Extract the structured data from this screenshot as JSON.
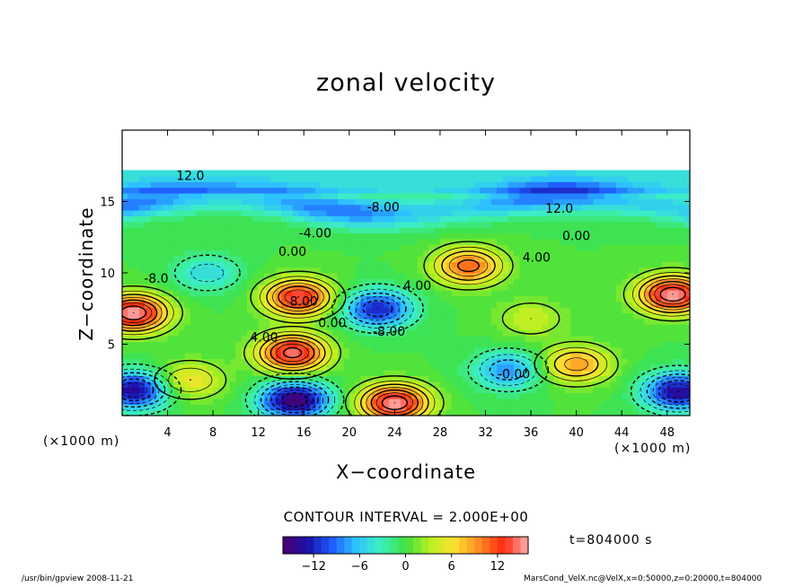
{
  "chart_data": {
    "type": "heatmap",
    "title": "zonal velocity",
    "xlabel": "X−coordinate",
    "ylabel": "Z−coordinate",
    "x_unit_left": "(×1000 m)",
    "x_unit_right": "(×1000 m)",
    "xlim": [
      0,
      50
    ],
    "ylim": [
      0,
      20
    ],
    "x_ticks": [
      4,
      8,
      12,
      16,
      20,
      24,
      28,
      32,
      36,
      40,
      44,
      48
    ],
    "y_ticks": [
      5,
      10,
      15
    ],
    "contour_interval_text": "CONTOUR INTERVAL = 2.000E+00",
    "time_text": "t=804000 s",
    "colorbar": {
      "range": [
        -16,
        16
      ],
      "ticks": [
        -12,
        -6,
        0,
        6,
        12
      ],
      "colormap": [
        "#4b0070",
        "#1a0fa8",
        "#1e5cff",
        "#2fc4ff",
        "#3cf0c0",
        "#3ee040",
        "#b8f020",
        "#ffe030",
        "#ff8a20",
        "#ff2a10",
        "#ffb0b0"
      ]
    },
    "contour_labels": [
      {
        "text": "12.0",
        "x": 6,
        "y": 16.5
      },
      {
        "text": "-8.00",
        "x": 23,
        "y": 14.3
      },
      {
        "text": "12.0",
        "x": 38.5,
        "y": 14.2
      },
      {
        "text": "-4.00",
        "x": 17,
        "y": 12.5
      },
      {
        "text": "0.00",
        "x": 40,
        "y": 12.3
      },
      {
        "text": "0.00",
        "x": 15,
        "y": 11.2
      },
      {
        "text": "4.00",
        "x": 36.5,
        "y": 10.8
      },
      {
        "text": "-8.0",
        "x": 3,
        "y": 9.3
      },
      {
        "text": "8.00",
        "x": 16,
        "y": 7.7
      },
      {
        "text": "0.00",
        "x": 18.5,
        "y": 6.2
      },
      {
        "text": "4.00",
        "x": 26,
        "y": 8.8
      },
      {
        "text": "-8.00",
        "x": 23.5,
        "y": 5.6
      },
      {
        "text": "4.00",
        "x": 12.5,
        "y": 5.2
      },
      {
        "text": "-0.00",
        "x": 34.5,
        "y": 2.6
      }
    ],
    "features": [
      {
        "kind": "max",
        "x": 15.5,
        "y": 8.3,
        "value": 14
      },
      {
        "kind": "max",
        "x": 15,
        "y": 4.4,
        "value": 15
      },
      {
        "kind": "max",
        "x": 48.5,
        "y": 8.5,
        "value": 16
      },
      {
        "kind": "max",
        "x": 30.5,
        "y": 10.5,
        "value": 11
      },
      {
        "kind": "max",
        "x": 40,
        "y": 3.6,
        "value": 9
      },
      {
        "kind": "max",
        "x": 1,
        "y": 7.2,
        "value": 16
      },
      {
        "kind": "max",
        "x": 24,
        "y": 0.9,
        "value": 16
      },
      {
        "kind": "min",
        "x": 22.5,
        "y": 7.5,
        "value": -12
      },
      {
        "kind": "min",
        "x": 15.2,
        "y": 1.1,
        "value": -16
      },
      {
        "kind": "min",
        "x": 1,
        "y": 1.8,
        "value": -14
      },
      {
        "kind": "min",
        "x": 49,
        "y": 1.7,
        "value": -14
      },
      {
        "kind": "min",
        "x": 34,
        "y": 3.2,
        "value": -8
      },
      {
        "kind": "min",
        "x": 7.5,
        "y": 10,
        "value": -5
      },
      {
        "kind": "max",
        "x": 6,
        "y": 2.5,
        "value": 6
      },
      {
        "kind": "max",
        "x": 36,
        "y": 6.8,
        "value": 4
      }
    ]
  },
  "footer": {
    "left": "/usr/bin/gpview   2008-11-21",
    "right": "MarsCond_VelX.nc@VelX,x=0:50000,z=0:20000,t=804000"
  }
}
